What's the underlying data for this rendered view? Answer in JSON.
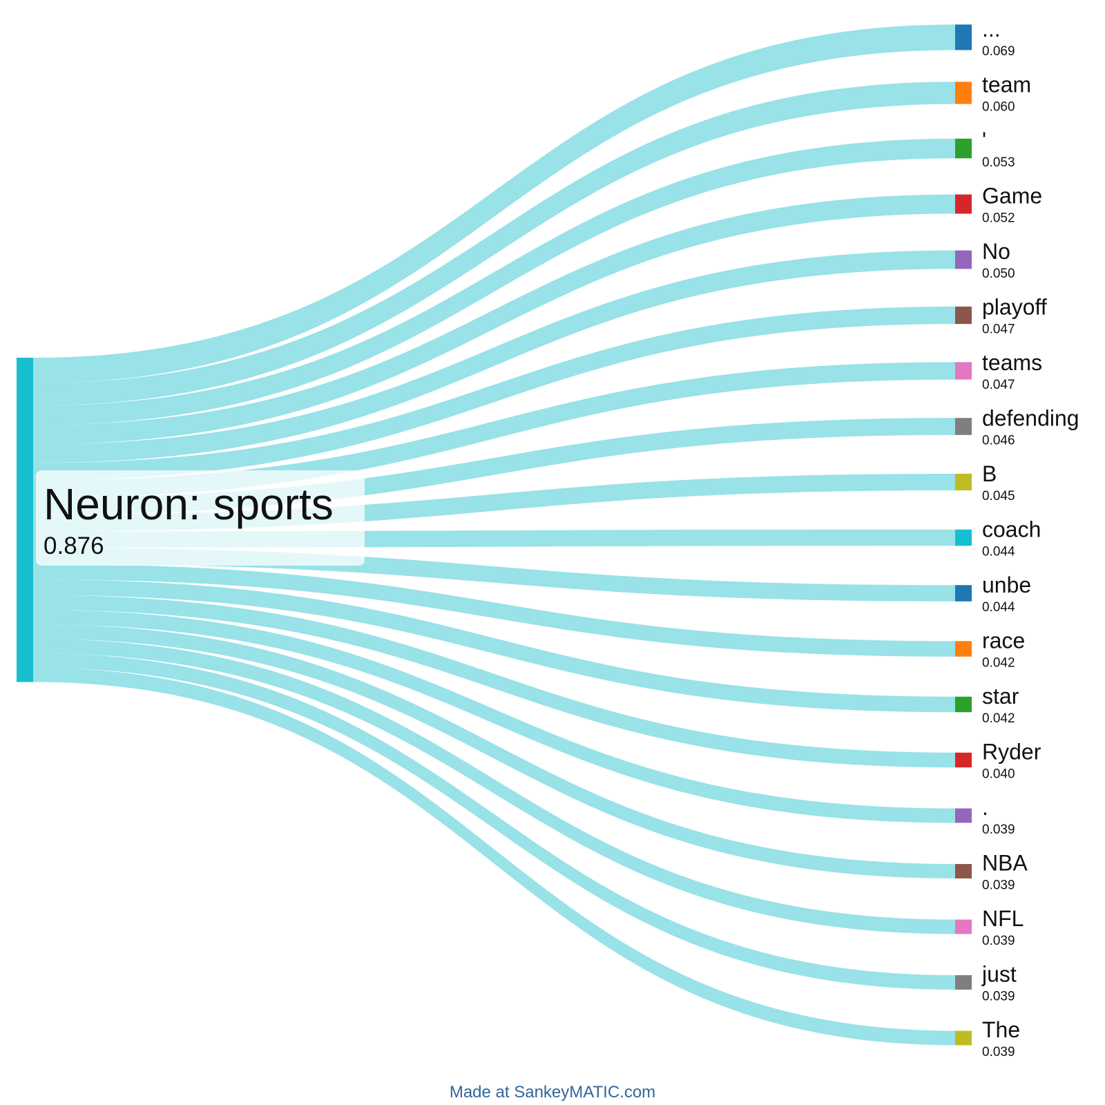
{
  "chart_data": {
    "type": "sankey",
    "source": {
      "label": "Neuron: sports",
      "value": "0.876",
      "color": "#17becf"
    },
    "flow_color": "#98e2e8",
    "targets": [
      {
        "label": "...",
        "value": "0.069",
        "color": "#1f77b4"
      },
      {
        "label": "team",
        "value": "0.060",
        "color": "#ff7f0e"
      },
      {
        "label": "'",
        "value": "0.053",
        "color": "#2ca02c"
      },
      {
        "label": "Game",
        "value": "0.052",
        "color": "#d62728"
      },
      {
        "label": "No",
        "value": "0.050",
        "color": "#9467bd"
      },
      {
        "label": "playoff",
        "value": "0.047",
        "color": "#8c564b"
      },
      {
        "label": "teams",
        "value": "0.047",
        "color": "#e377c2"
      },
      {
        "label": "defending",
        "value": "0.046",
        "color": "#7f7f7f"
      },
      {
        "label": "B",
        "value": "0.045",
        "color": "#bcbd22"
      },
      {
        "label": "coach",
        "value": "0.044",
        "color": "#17becf"
      },
      {
        "label": "unbe",
        "value": "0.044",
        "color": "#1f77b4"
      },
      {
        "label": "race",
        "value": "0.042",
        "color": "#ff7f0e"
      },
      {
        "label": "star",
        "value": "0.042",
        "color": "#2ca02c"
      },
      {
        "label": "Ryder",
        "value": "0.040",
        "color": "#d62728"
      },
      {
        "label": ".",
        "value": "0.039",
        "color": "#9467bd"
      },
      {
        "label": "NBA",
        "value": "0.039",
        "color": "#8c564b"
      },
      {
        "label": "NFL",
        "value": "0.039",
        "color": "#e377c2"
      },
      {
        "label": "just",
        "value": "0.039",
        "color": "#7f7f7f"
      },
      {
        "label": "The",
        "value": "0.039",
        "color": "#bcbd22"
      }
    ]
  },
  "footer": {
    "text": "Made at SankeyMATIC.com"
  }
}
